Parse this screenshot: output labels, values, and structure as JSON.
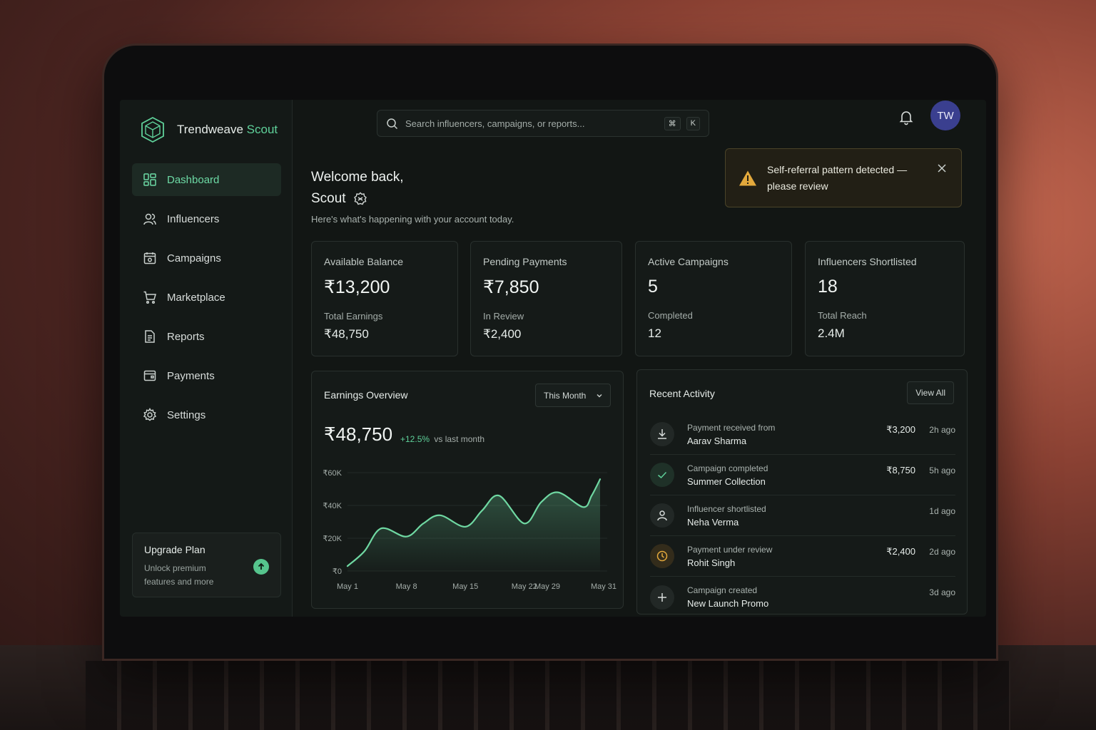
{
  "brand": {
    "name": "Trendweave",
    "accent": "Scout"
  },
  "nav": [
    {
      "label": "Dashboard",
      "icon": "dashboard-icon",
      "active": true
    },
    {
      "label": "Influencers",
      "icon": "users-icon"
    },
    {
      "label": "Campaigns",
      "icon": "campaigns-icon"
    },
    {
      "label": "Marketplace",
      "icon": "cart-icon"
    },
    {
      "label": "Reports",
      "icon": "document-icon"
    },
    {
      "label": "Payments",
      "icon": "wallet-icon"
    },
    {
      "label": "Settings",
      "icon": "gear-icon"
    }
  ],
  "upgrade": {
    "title": "Upgrade Plan",
    "description": "Unlock premium features and more"
  },
  "search": {
    "placeholder": "Search influencers, campaigns, or reports...",
    "shortcut_mod": "⌘",
    "shortcut_key": "K"
  },
  "user": {
    "initials": "TW"
  },
  "welcome": {
    "line1": "Welcome back,",
    "name": "Scout",
    "subtitle": "Here's what's happening with your account today."
  },
  "alert": {
    "message": "Self-referral pattern detected — please review"
  },
  "stats": [
    {
      "label": "Available Balance",
      "value": "₹13,200",
      "sub_label": "Total Earnings",
      "sub_value": "₹48,750"
    },
    {
      "label": "Pending Payments",
      "value": "₹7,850",
      "sub_label": "In Review",
      "sub_value": "₹2,400"
    },
    {
      "label": "Active Campaigns",
      "value": "5",
      "sub_label": "Completed",
      "sub_value": "12"
    },
    {
      "label": "Influencers Shortlisted",
      "value": "18",
      "sub_label": "Total Reach",
      "sub_value": "2.4M"
    }
  ],
  "earnings": {
    "title": "Earnings Overview",
    "range": "This Month",
    "total": "₹48,750",
    "delta": "+12.5%",
    "delta_suffix": "vs last month"
  },
  "chart_data": {
    "type": "area",
    "title": "Earnings Overview",
    "x_ticks": [
      "May 1",
      "May 8",
      "May 15",
      "May 22",
      "May 29",
      "May 31"
    ],
    "y_ticks": [
      "₹0",
      "₹20K",
      "₹40K",
      "₹60K"
    ],
    "ylim": [
      0,
      60000
    ],
    "x": [
      1,
      3,
      5,
      8,
      10,
      12,
      15,
      17,
      19,
      22,
      24,
      26,
      29,
      30,
      31
    ],
    "values": [
      3000,
      12000,
      26000,
      21000,
      29000,
      34000,
      27000,
      37000,
      46000,
      29000,
      42000,
      48000,
      39000,
      46000,
      56000
    ],
    "grid": true,
    "color": "#6fd8a2"
  },
  "activity": {
    "title": "Recent Activity",
    "view_all": "View All",
    "items": [
      {
        "icon": "download-icon",
        "tone": "neutral",
        "line1": "Payment received from",
        "line2": "Aarav Sharma",
        "amount": "₹3,200",
        "time": "2h ago"
      },
      {
        "icon": "check-icon",
        "tone": "green",
        "line1": "Campaign completed",
        "line2": "Summer Collection",
        "amount": "₹8,750",
        "time": "5h ago"
      },
      {
        "icon": "user-icon",
        "tone": "neutral",
        "line1": "Influencer shortlisted",
        "line2": "Neha Verma",
        "amount": "",
        "time": "1d ago"
      },
      {
        "icon": "clock-icon",
        "tone": "amber",
        "line1": "Payment under review",
        "line2": "Rohit Singh",
        "amount": "₹2,400",
        "time": "2d ago"
      },
      {
        "icon": "plus-icon",
        "tone": "neutral",
        "line1": "Campaign created",
        "line2": "New Launch Promo",
        "amount": "",
        "time": "3d ago"
      }
    ]
  }
}
